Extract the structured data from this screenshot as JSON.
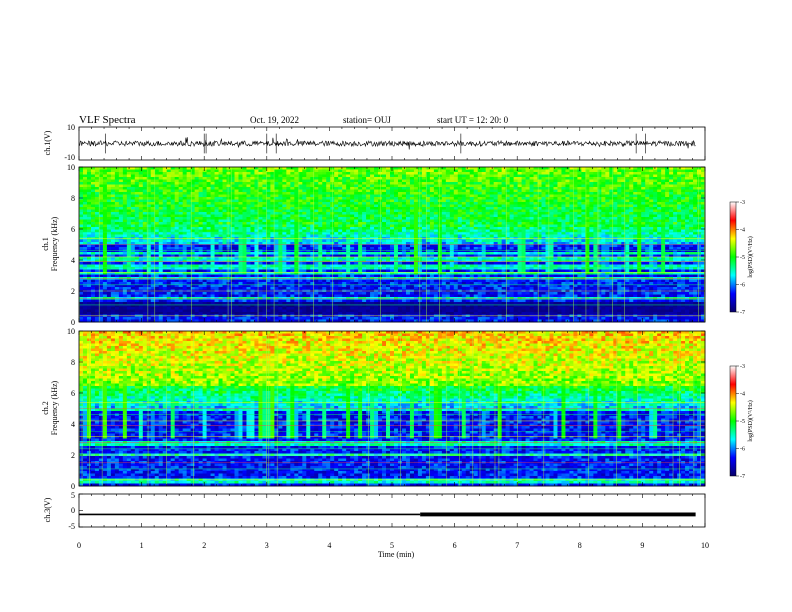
{
  "header": {
    "title": "VLF Spectra",
    "date": "Oct. 19, 2022",
    "station": "station= OUJ",
    "start": "start  UT  =   12: 20: 0"
  },
  "colors": {
    "colormap": [
      "#08006a",
      "#0000ff",
      "#00ffff",
      "#00ff00",
      "#ffff00",
      "#ff0000",
      "#ffffff"
    ],
    "trace": "#000000"
  },
  "chart_data": [
    {
      "name": "ch.1 waveform",
      "type": "line",
      "ylabel": "ch.1(V)",
      "ylim": [
        -10,
        10
      ],
      "yticks": [
        "10",
        "-10"
      ],
      "xlim": [
        0,
        10
      ],
      "baseline": 0
    },
    {
      "name": "ch.1 spectrogram",
      "type": "heatmap",
      "ylabel": "ch.1\nFrequency  (kHz)",
      "ylim": [
        0,
        10
      ],
      "yticks": [
        "0",
        "2",
        "4",
        "6",
        "8",
        "10"
      ],
      "xlim": [
        0,
        10
      ],
      "colorbar": {
        "label": "log(PSD)(V²/Hz)",
        "range": [
          -7,
          -3
        ],
        "ticks": [
          "-3",
          "-4",
          "-5",
          "-6",
          "-7"
        ]
      }
    },
    {
      "name": "ch.2 spectrogram",
      "type": "heatmap",
      "ylabel": "ch.2\nFrequency  (kHz)",
      "ylim": [
        0,
        10
      ],
      "yticks": [
        "0",
        "2",
        "4",
        "6",
        "8",
        "10"
      ],
      "xlim": [
        0,
        10
      ],
      "colorbar": {
        "label": "log(PSD)(V²/Hz)",
        "range": [
          -7,
          -3
        ],
        "ticks": [
          "-3",
          "-4",
          "-5",
          "-6",
          "-7"
        ]
      }
    },
    {
      "name": "ch.3 trace",
      "type": "line",
      "ylabel": "ch.3(V)",
      "ylim": [
        -5,
        5
      ],
      "yticks": [
        "5",
        "0",
        "-5"
      ],
      "xlim": [
        0,
        10
      ],
      "x": [
        0,
        5.45,
        5.45,
        9.85
      ],
      "y": [
        -1.2,
        -1.2,
        -1.2,
        -1.2
      ]
    }
  ],
  "xaxis": {
    "label": "Time  (min)",
    "ticks": [
      "0",
      "1",
      "2",
      "3",
      "4",
      "5",
      "6",
      "7",
      "8",
      "9",
      "10"
    ]
  }
}
